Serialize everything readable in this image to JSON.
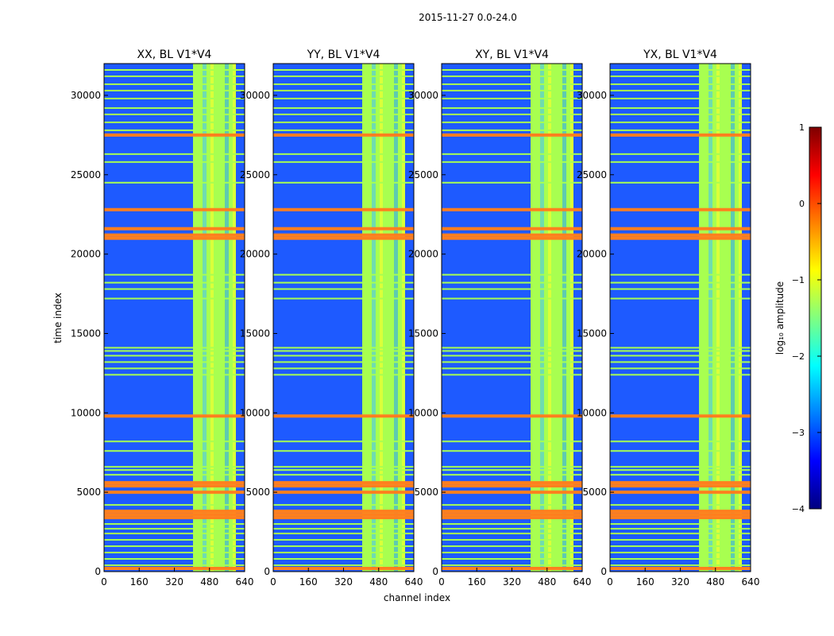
{
  "figure": {
    "suptitle": "2015-11-27 0.0-24.0"
  },
  "colors": {
    "jet": [
      "#00007f",
      "#0000ff",
      "#0080ff",
      "#00ffff",
      "#80ff80",
      "#ffff00",
      "#ff8000",
      "#ff0000",
      "#7f0000"
    ],
    "background_level": "#1e5aff",
    "flag_green": "#a8ff50",
    "flag_orange": "#ff7f1e",
    "flag_yellow": "#f0ff30"
  },
  "chart_data": [
    {
      "type": "heatmap",
      "title": "XX, BL V1*V4",
      "xlabel": "",
      "ylabel": "time index",
      "xlim": [
        0,
        640
      ],
      "ylim": [
        0,
        32000
      ],
      "xticks": [
        "0",
        "160",
        "320",
        "480",
        "640"
      ],
      "yticks": [
        "0",
        "5000",
        "10000",
        "15000",
        "20000",
        "25000",
        "30000"
      ],
      "grid": false,
      "rfi_channel_band": [
        405,
        600
      ]
    },
    {
      "type": "heatmap",
      "title": "YY, BL V1*V4",
      "xlabel": "channel index",
      "ylabel": "",
      "xlim": [
        0,
        640
      ],
      "ylim": [
        0,
        32000
      ],
      "xticks": [
        "0",
        "160",
        "320",
        "480",
        "640"
      ],
      "yticks": [
        "0",
        "5000",
        "10000",
        "15000",
        "20000",
        "25000",
        "30000"
      ],
      "grid": false,
      "rfi_channel_band": [
        405,
        600
      ]
    },
    {
      "type": "heatmap",
      "title": "XY, BL V1*V4",
      "xlabel": "",
      "ylabel": "",
      "xlim": [
        0,
        640
      ],
      "ylim": [
        0,
        32000
      ],
      "xticks": [
        "0",
        "160",
        "320",
        "480",
        "640"
      ],
      "yticks": [
        "0",
        "5000",
        "10000",
        "15000",
        "20000",
        "25000",
        "30000"
      ],
      "grid": false,
      "rfi_channel_band": [
        405,
        600
      ]
    },
    {
      "type": "heatmap",
      "title": "YX, BL V1*V4",
      "xlabel": "",
      "ylabel": "",
      "xlim": [
        0,
        640
      ],
      "ylim": [
        0,
        32000
      ],
      "xticks": [
        "0",
        "160",
        "320",
        "480",
        "640"
      ],
      "yticks": [
        "0",
        "5000",
        "10000",
        "15000",
        "20000",
        "25000",
        "30000"
      ],
      "grid": false,
      "rfi_channel_band": [
        405,
        600
      ]
    }
  ],
  "colorbar": {
    "label": "log₁₀ amplitude",
    "range": [
      -4,
      1
    ],
    "ticks": [
      "1",
      "0",
      "−1",
      "−2",
      "−3",
      "−4"
    ]
  },
  "flag_rows": {
    "orange_time_index": [
      200,
      3400,
      3600,
      3800,
      5000,
      5400,
      5600,
      9800,
      21000,
      21200,
      21600,
      22800,
      27500
    ],
    "green_time_index": [
      400,
      800,
      1200,
      1600,
      2000,
      2400,
      2700,
      3000,
      4200,
      6100,
      6400,
      6600,
      7600,
      8200,
      12400,
      12800,
      13200,
      13600,
      13900,
      14100,
      17200,
      17800,
      18200,
      18700,
      24500,
      25800,
      26300,
      27800,
      28300,
      28800,
      29200,
      29800,
      30300,
      30700,
      31200,
      31600
    ]
  }
}
